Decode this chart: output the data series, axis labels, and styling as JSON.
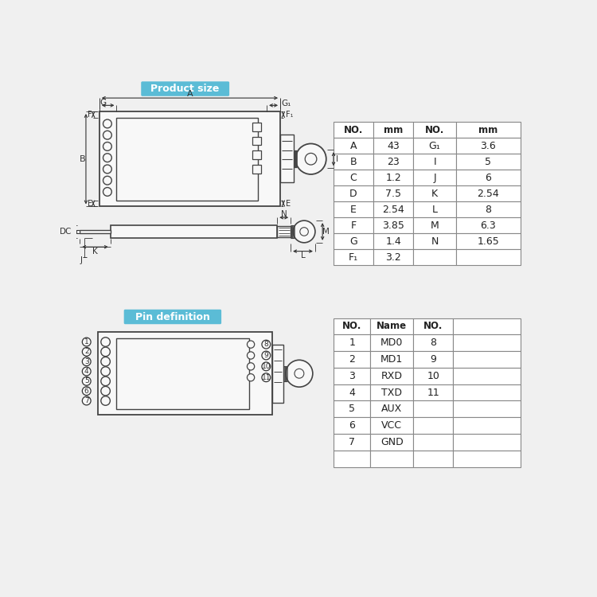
{
  "bg_color": "#f0f0f0",
  "title1": "Product size",
  "title1_bg": "#5bbcd6",
  "title2": "Pin definition",
  "title2_bg": "#5bbcd6",
  "table1_headers": [
    "NO.",
    "mm",
    "NO.",
    "mm"
  ],
  "table1_rows": [
    [
      "A",
      "43",
      "G₁",
      "3.6"
    ],
    [
      "B",
      "23",
      "I",
      "5"
    ],
    [
      "C",
      "1.2",
      "J",
      "6"
    ],
    [
      "D",
      "7.5",
      "K",
      "2.54"
    ],
    [
      "E",
      "2.54",
      "L",
      "8"
    ],
    [
      "F",
      "3.85",
      "M",
      "6.3"
    ],
    [
      "G",
      "1.4",
      "N",
      "1.65"
    ],
    [
      "F₁",
      "3.2",
      "",
      ""
    ]
  ],
  "table2_headers": [
    "NO.",
    "Name",
    "NO.",
    ""
  ],
  "table2_rows": [
    [
      "1",
      "MD0",
      "8",
      ""
    ],
    [
      "2",
      "MD1",
      "9",
      ""
    ],
    [
      "3",
      "RXD",
      "10",
      ""
    ],
    [
      "4",
      "TXD",
      "11",
      ""
    ],
    [
      "5",
      "AUX",
      "",
      ""
    ],
    [
      "6",
      "VCC",
      "",
      ""
    ],
    [
      "7",
      "GND",
      "",
      ""
    ],
    [
      "",
      "",
      "",
      ""
    ]
  ],
  "line_color": "#444444",
  "table_line_color": "#888888",
  "dim_color": "#333333",
  "white": "#ffffff"
}
